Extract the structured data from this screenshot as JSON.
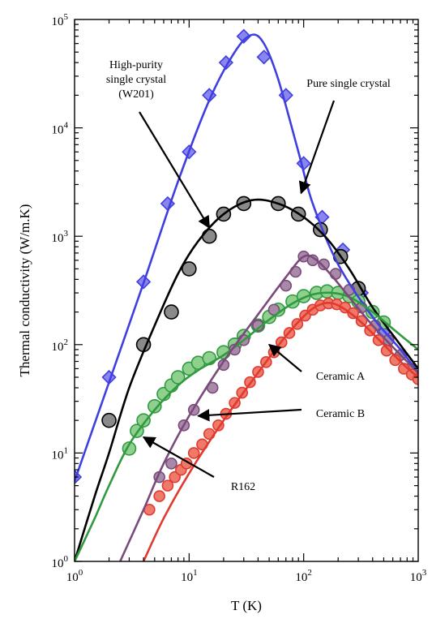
{
  "chart_data": {
    "type": "scatter",
    "xlabel": "T (K)",
    "ylabel": "Thermal conductivity (W/m.K)",
    "x_scale": "log",
    "y_scale": "log",
    "xlim": [
      1,
      1000
    ],
    "ylim": [
      1,
      100000
    ],
    "x_tick_labels": [
      {
        "value": 1,
        "base": "10",
        "exp": "0"
      },
      {
        "value": 10,
        "base": "10",
        "exp": "1"
      },
      {
        "value": 100,
        "base": "10",
        "exp": "2"
      },
      {
        "value": 1000,
        "base": "10",
        "exp": "3"
      }
    ],
    "y_tick_labels": [
      {
        "value": 1,
        "base": "10",
        "exp": "0"
      },
      {
        "value": 10,
        "base": "10",
        "exp": "1"
      },
      {
        "value": 100,
        "base": "10",
        "exp": "2"
      },
      {
        "value": 1000,
        "base": "10",
        "exp": "3"
      },
      {
        "value": 10000,
        "base": "10",
        "exp": "4"
      },
      {
        "value": 100000,
        "base": "10",
        "exp": "5"
      }
    ],
    "grid": false,
    "series": [
      {
        "name": "Pure single crystal",
        "color": "#3f3fe0",
        "fill": "#8b85f0",
        "marker": "diamond",
        "points": [
          [
            1,
            6
          ],
          [
            2,
            50
          ],
          [
            4,
            380
          ],
          [
            6.5,
            2000
          ],
          [
            10,
            6000
          ],
          [
            15,
            20000
          ],
          [
            21,
            40000
          ],
          [
            30,
            70000
          ],
          [
            45,
            45000
          ],
          [
            70,
            20000
          ],
          [
            100,
            4700
          ],
          [
            145,
            1500
          ],
          [
            220,
            750
          ],
          [
            320,
            300
          ],
          [
            500,
            130
          ],
          [
            700,
            80
          ],
          [
            1000,
            50
          ]
        ],
        "fit": [
          [
            1,
            5.5
          ],
          [
            2,
            45
          ],
          [
            4,
            370
          ],
          [
            8,
            3200
          ],
          [
            15,
            18000
          ],
          [
            25,
            50000
          ],
          [
            35,
            72000
          ],
          [
            45,
            60000
          ],
          [
            60,
            28000
          ],
          [
            90,
            6000
          ],
          [
            120,
            2000
          ],
          [
            200,
            550
          ],
          [
            400,
            180
          ],
          [
            700,
            90
          ],
          [
            1000,
            55
          ]
        ]
      },
      {
        "name": "High-purity single crystal (W201)",
        "color": "#000000",
        "fill": "#8a8a8a",
        "marker": "circle",
        "points": [
          [
            2,
            20
          ],
          [
            4,
            100
          ],
          [
            7,
            200
          ],
          [
            10,
            500
          ],
          [
            15,
            1000
          ],
          [
            20,
            1600
          ],
          [
            30,
            2000
          ],
          [
            60,
            2000
          ],
          [
            90,
            1600
          ],
          [
            140,
            1150
          ],
          [
            210,
            650
          ],
          [
            300,
            330
          ]
        ],
        "fit": [
          [
            1,
            1
          ],
          [
            1.5,
            4
          ],
          [
            2,
            10
          ],
          [
            3,
            40
          ],
          [
            5,
            150
          ],
          [
            8,
            450
          ],
          [
            12,
            900
          ],
          [
            20,
            1600
          ],
          [
            35,
            2150
          ],
          [
            60,
            2000
          ],
          [
            100,
            1500
          ],
          [
            160,
            950
          ],
          [
            250,
            500
          ],
          [
            400,
            220
          ],
          [
            650,
            110
          ],
          [
            1000,
            60
          ]
        ]
      },
      {
        "name": "R162",
        "color": "#2f9a3f",
        "fill": "#8fd08f",
        "marker": "circle",
        "points": [
          [
            3,
            11
          ],
          [
            3.5,
            16
          ],
          [
            4,
            20
          ],
          [
            5,
            27
          ],
          [
            6,
            35
          ],
          [
            7,
            42
          ],
          [
            8,
            50
          ],
          [
            10,
            60
          ],
          [
            12,
            68
          ],
          [
            15,
            75
          ],
          [
            20,
            85
          ],
          [
            25,
            100
          ],
          [
            30,
            120
          ],
          [
            40,
            150
          ],
          [
            50,
            180
          ],
          [
            60,
            210
          ],
          [
            80,
            250
          ],
          [
            100,
            280
          ],
          [
            130,
            300
          ],
          [
            160,
            310
          ],
          [
            200,
            300
          ],
          [
            250,
            280
          ],
          [
            300,
            250
          ],
          [
            400,
            200
          ],
          [
            500,
            160
          ]
        ],
        "fit": [
          [
            1,
            1
          ],
          [
            1.5,
            2.5
          ],
          [
            2,
            5
          ],
          [
            3,
            12
          ],
          [
            5,
            25
          ],
          [
            8,
            42
          ],
          [
            12,
            58
          ],
          [
            20,
            80
          ],
          [
            30,
            110
          ],
          [
            50,
            170
          ],
          [
            80,
            240
          ],
          [
            120,
            290
          ],
          [
            180,
            300
          ],
          [
            260,
            270
          ],
          [
            400,
            200
          ],
          [
            600,
            140
          ],
          [
            1000,
            90
          ]
        ]
      },
      {
        "name": "Ceramic B",
        "color": "#7a4a7a",
        "fill": "#a88aa8",
        "marker": "circle",
        "points": [
          [
            5.5,
            6
          ],
          [
            7,
            8
          ],
          [
            9,
            18
          ],
          [
            11,
            25
          ],
          [
            16,
            40
          ],
          [
            20,
            65
          ],
          [
            25,
            90
          ],
          [
            30,
            110
          ],
          [
            40,
            150
          ],
          [
            55,
            210
          ],
          [
            70,
            350
          ],
          [
            85,
            470
          ],
          [
            100,
            650
          ],
          [
            120,
            600
          ],
          [
            150,
            550
          ],
          [
            190,
            450
          ],
          [
            250,
            320
          ],
          [
            320,
            220
          ],
          [
            420,
            150
          ],
          [
            550,
            110
          ],
          [
            700,
            80
          ],
          [
            850,
            60
          ],
          [
            1000,
            50
          ]
        ],
        "fit": [
          [
            2.5,
            1
          ],
          [
            4,
            3
          ],
          [
            6,
            8
          ],
          [
            10,
            22
          ],
          [
            20,
            70
          ],
          [
            40,
            190
          ],
          [
            70,
            420
          ],
          [
            100,
            650
          ],
          [
            130,
            600
          ],
          [
            180,
            420
          ],
          [
            260,
            260
          ],
          [
            400,
            150
          ],
          [
            600,
            95
          ],
          [
            1000,
            55
          ]
        ]
      },
      {
        "name": "Ceramic A",
        "color": "#e03a30",
        "fill": "#f07a6a",
        "marker": "circle",
        "points": [
          [
            4.5,
            3
          ],
          [
            5.5,
            4
          ],
          [
            6.5,
            5
          ],
          [
            7.5,
            6
          ],
          [
            8.5,
            7
          ],
          [
            9.5,
            8
          ],
          [
            11,
            10
          ],
          [
            13,
            12
          ],
          [
            15,
            15
          ],
          [
            18,
            18
          ],
          [
            21,
            23
          ],
          [
            25,
            29
          ],
          [
            29,
            36
          ],
          [
            34,
            45
          ],
          [
            40,
            56
          ],
          [
            47,
            69
          ],
          [
            55,
            85
          ],
          [
            64,
            105
          ],
          [
            75,
            128
          ],
          [
            88,
            155
          ],
          [
            103,
            185
          ],
          [
            120,
            210
          ],
          [
            140,
            230
          ],
          [
            165,
            240
          ],
          [
            195,
            235
          ],
          [
            230,
            220
          ],
          [
            270,
            195
          ],
          [
            320,
            165
          ],
          [
            380,
            135
          ],
          [
            450,
            110
          ],
          [
            530,
            88
          ],
          [
            630,
            72
          ],
          [
            750,
            60
          ],
          [
            880,
            53
          ],
          [
            1000,
            48
          ]
        ],
        "fit": [
          [
            4,
            1
          ],
          [
            6,
            2.5
          ],
          [
            10,
            6.5
          ],
          [
            20,
            20
          ],
          [
            40,
            55
          ],
          [
            70,
            120
          ],
          [
            110,
            200
          ],
          [
            150,
            240
          ],
          [
            200,
            230
          ],
          [
            300,
            170
          ],
          [
            500,
            100
          ],
          [
            750,
            65
          ],
          [
            1000,
            50
          ]
        ]
      }
    ],
    "annotations": [
      {
        "lines": [
          "High-purity",
          "single crystal",
          "(W201)"
        ],
        "target": [
          15,
          1200
        ]
      },
      {
        "lines": [
          "Pure single crystal"
        ],
        "target": [
          95,
          2500
        ]
      },
      {
        "lines": [
          "Ceramic A"
        ],
        "target": [
          50,
          100
        ]
      },
      {
        "lines": [
          "Ceramic B"
        ],
        "target": [
          12,
          22
        ]
      },
      {
        "lines": [
          "R162"
        ],
        "target": [
          4,
          14
        ]
      }
    ]
  }
}
